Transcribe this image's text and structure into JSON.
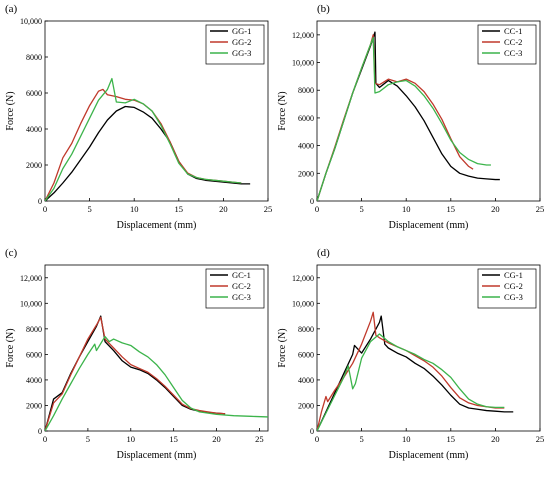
{
  "figure": {
    "panels": [
      "(a)",
      "(b)",
      "(c)",
      "(d)"
    ]
  },
  "chart_data": [
    {
      "panel": "(a)",
      "type": "line",
      "xlabel": "Displacement (mm)",
      "ylabel": "Force (N)",
      "xlim": [
        0,
        25
      ],
      "ylim": [
        0,
        10000
      ],
      "xticks": [
        0,
        5,
        10,
        15,
        20,
        25
      ],
      "yticks": [
        0,
        2000,
        4000,
        6000,
        8000,
        10000
      ],
      "ytick_labels": [
        "0",
        "2000",
        "4000",
        "6000",
        "8000",
        "10,000"
      ],
      "legend_position": "top-right",
      "series": [
        {
          "name": "GG-1",
          "color": "#000000",
          "x": [
            0,
            1,
            2,
            3,
            4,
            5,
            6,
            7,
            8,
            9,
            10,
            11,
            12,
            13,
            14,
            15,
            16,
            17,
            18,
            19,
            20,
            21,
            22,
            23
          ],
          "y": [
            0,
            450,
            1000,
            1600,
            2300,
            3000,
            3800,
            4500,
            5000,
            5250,
            5200,
            4950,
            4600,
            4000,
            3300,
            2200,
            1500,
            1250,
            1150,
            1100,
            1050,
            1000,
            950,
            950
          ]
        },
        {
          "name": "GG-2",
          "color": "#c0392b",
          "x": [
            0,
            1,
            2,
            3,
            4,
            5,
            6,
            6.5,
            7,
            8,
            9,
            10,
            11,
            12,
            13,
            14,
            15,
            16,
            17,
            18,
            19,
            20,
            21,
            22
          ],
          "y": [
            0,
            1000,
            2400,
            3200,
            4300,
            5300,
            6100,
            6200,
            5900,
            5800,
            5650,
            5600,
            5400,
            5000,
            4300,
            3300,
            2200,
            1550,
            1300,
            1200,
            1150,
            1100,
            1050,
            1000
          ]
        },
        {
          "name": "GG-3",
          "color": "#3cb44b",
          "x": [
            0,
            1,
            2,
            3,
            4,
            5,
            6,
            7,
            7.5,
            8,
            9,
            10,
            11,
            12,
            13,
            14,
            15,
            16,
            17,
            18,
            19,
            20,
            21,
            22
          ],
          "y": [
            0,
            700,
            1800,
            2600,
            3600,
            4600,
            5600,
            6200,
            6800,
            5500,
            5450,
            5650,
            5400,
            5000,
            4200,
            3200,
            2100,
            1500,
            1300,
            1200,
            1150,
            1100,
            1050,
            1000
          ]
        }
      ]
    },
    {
      "panel": "(b)",
      "type": "line",
      "xlabel": "Displacement (mm)",
      "ylabel": "Force (N)",
      "xlim": [
        0,
        25
      ],
      "ylim": [
        0,
        13000
      ],
      "xticks": [
        0,
        5,
        10,
        15,
        20,
        25
      ],
      "yticks": [
        0,
        2000,
        4000,
        6000,
        8000,
        10000,
        12000
      ],
      "ytick_labels": [
        "0",
        "2000",
        "4000",
        "6000",
        "8000",
        "10,000",
        "12,000"
      ],
      "legend_position": "top-right",
      "series": [
        {
          "name": "CC-1",
          "color": "#000000",
          "x": [
            0,
            1,
            2,
            3,
            4,
            5,
            6,
            6.5,
            6.6,
            7,
            8,
            9,
            10,
            11,
            12,
            13,
            14,
            15,
            16,
            17,
            18,
            19,
            20,
            20.5
          ],
          "y": [
            0,
            2000,
            3800,
            5800,
            7800,
            9500,
            11200,
            12200,
            8500,
            8200,
            8700,
            8300,
            7600,
            6800,
            5800,
            4600,
            3400,
            2500,
            2000,
            1800,
            1650,
            1600,
            1550,
            1550
          ]
        },
        {
          "name": "CC-2",
          "color": "#c0392b",
          "x": [
            0,
            1,
            2,
            3,
            4,
            5,
            6,
            6.3,
            6.5,
            7,
            8,
            9,
            10,
            11,
            12,
            13,
            14,
            15,
            16,
            17,
            17.5
          ],
          "y": [
            0,
            2000,
            3900,
            5900,
            7800,
            9600,
            11300,
            12000,
            8500,
            8400,
            8800,
            8600,
            8800,
            8500,
            7900,
            7000,
            5900,
            4500,
            3200,
            2500,
            2300
          ]
        },
        {
          "name": "CC-3",
          "color": "#3cb44b",
          "x": [
            0,
            1,
            2,
            3,
            4,
            5,
            6,
            6.3,
            6.5,
            7,
            8,
            9,
            10,
            11,
            12,
            13,
            14,
            15,
            16,
            17,
            18,
            19,
            19.5
          ],
          "y": [
            0,
            2000,
            3800,
            5800,
            7800,
            9600,
            11300,
            11800,
            7800,
            7900,
            8400,
            8600,
            8700,
            8300,
            7600,
            6700,
            5600,
            4400,
            3500,
            3000,
            2700,
            2600,
            2600
          ]
        }
      ]
    },
    {
      "panel": "(c)",
      "type": "line",
      "xlabel": "Displacement (mm)",
      "ylabel": "Force (N)",
      "xlim": [
        0,
        26
      ],
      "ylim": [
        0,
        13000
      ],
      "xticks": [
        0,
        5,
        10,
        15,
        20,
        25
      ],
      "yticks": [
        0,
        2000,
        4000,
        6000,
        8000,
        10000,
        12000
      ],
      "ytick_labels": [
        "0",
        "2000",
        "4000",
        "6000",
        "8000",
        "10,000",
        "12,000"
      ],
      "legend_position": "top-right",
      "series": [
        {
          "name": "GC-1",
          "color": "#000000",
          "x": [
            0,
            1,
            2,
            3,
            4,
            5,
            6,
            6.5,
            7,
            8,
            9,
            10,
            11,
            12,
            13,
            14,
            15,
            16,
            17,
            18,
            19,
            20,
            21
          ],
          "y": [
            0,
            2500,
            3000,
            4500,
            5800,
            7000,
            8200,
            9000,
            7000,
            6300,
            5500,
            5000,
            4800,
            4500,
            4000,
            3400,
            2700,
            2000,
            1700,
            1550,
            1450,
            1400,
            1350
          ]
        },
        {
          "name": "GC-2",
          "color": "#c0392b",
          "x": [
            0,
            1,
            2,
            3,
            4,
            5,
            6,
            6.5,
            7,
            8,
            9,
            10,
            11,
            12,
            13,
            14,
            15,
            16,
            17,
            18,
            19,
            20,
            21
          ],
          "y": [
            0,
            2200,
            2900,
            4400,
            5800,
            7200,
            8300,
            8900,
            7200,
            6500,
            5800,
            5200,
            4900,
            4600,
            4100,
            3500,
            2800,
            2100,
            1750,
            1600,
            1500,
            1400,
            1350
          ]
        },
        {
          "name": "GC-3",
          "color": "#3cb44b",
          "x": [
            0,
            1,
            2,
            3,
            4,
            5,
            5.8,
            6,
            7,
            7.5,
            8,
            9,
            10,
            11,
            12,
            13,
            14,
            15,
            16,
            17,
            18,
            20,
            22,
            24,
            26
          ],
          "y": [
            0,
            1200,
            2500,
            3700,
            4900,
            6000,
            6800,
            6300,
            7400,
            7000,
            7200,
            6900,
            6700,
            6200,
            5800,
            5200,
            4400,
            3400,
            2400,
            1800,
            1500,
            1300,
            1200,
            1150,
            1100
          ]
        }
      ]
    },
    {
      "panel": "(d)",
      "type": "line",
      "xlabel": "Displacement (mm)",
      "ylabel": "Force (N)",
      "xlim": [
        0,
        25
      ],
      "ylim": [
        0,
        13000
      ],
      "xticks": [
        0,
        5,
        10,
        15,
        20,
        25
      ],
      "yticks": [
        0,
        2000,
        4000,
        6000,
        8000,
        10000,
        12000
      ],
      "ytick_labels": [
        "0",
        "2000",
        "4000",
        "6000",
        "8000",
        "10,000",
        "12,000"
      ],
      "legend_position": "top-right",
      "series": [
        {
          "name": "CG-1",
          "color": "#000000",
          "x": [
            0,
            1,
            2,
            3,
            4,
            4.2,
            5,
            6,
            7,
            7.2,
            7.6,
            8,
            9,
            10,
            11,
            12,
            13,
            14,
            15,
            16,
            17,
            18,
            19,
            20,
            21,
            22
          ],
          "y": [
            0,
            1500,
            3000,
            4500,
            6000,
            6700,
            6100,
            7200,
            8500,
            9000,
            6800,
            6500,
            6100,
            5800,
            5300,
            4900,
            4300,
            3600,
            2800,
            2100,
            1800,
            1700,
            1600,
            1550,
            1500,
            1500
          ]
        },
        {
          "name": "CG-2",
          "color": "#c0392b",
          "x": [
            0,
            0.5,
            1,
            1.2,
            2,
            3,
            4,
            5,
            6,
            6.3,
            6.6,
            7,
            8,
            9,
            10,
            11,
            12,
            13,
            14,
            15,
            16,
            17,
            18,
            19,
            20,
            21
          ],
          "y": [
            0,
            1500,
            2700,
            2300,
            3200,
            4200,
            5300,
            6800,
            8600,
            9300,
            7500,
            7300,
            6900,
            6600,
            6300,
            5900,
            5500,
            5000,
            4300,
            3400,
            2600,
            2200,
            2000,
            1900,
            1800,
            1800
          ]
        },
        {
          "name": "CG-3",
          "color": "#3cb44b",
          "x": [
            0,
            1,
            2,
            3,
            3.5,
            4,
            4.3,
            5,
            6,
            7,
            8,
            9,
            10,
            11,
            12,
            13,
            14,
            15,
            16,
            17,
            18,
            19,
            20,
            21
          ],
          "y": [
            0,
            1400,
            2800,
            4200,
            5100,
            3300,
            3700,
            5700,
            7000,
            7600,
            7000,
            6600,
            6300,
            6000,
            5600,
            5300,
            4800,
            4200,
            3300,
            2500,
            2100,
            1900,
            1850,
            1850
          ]
        }
      ]
    }
  ]
}
